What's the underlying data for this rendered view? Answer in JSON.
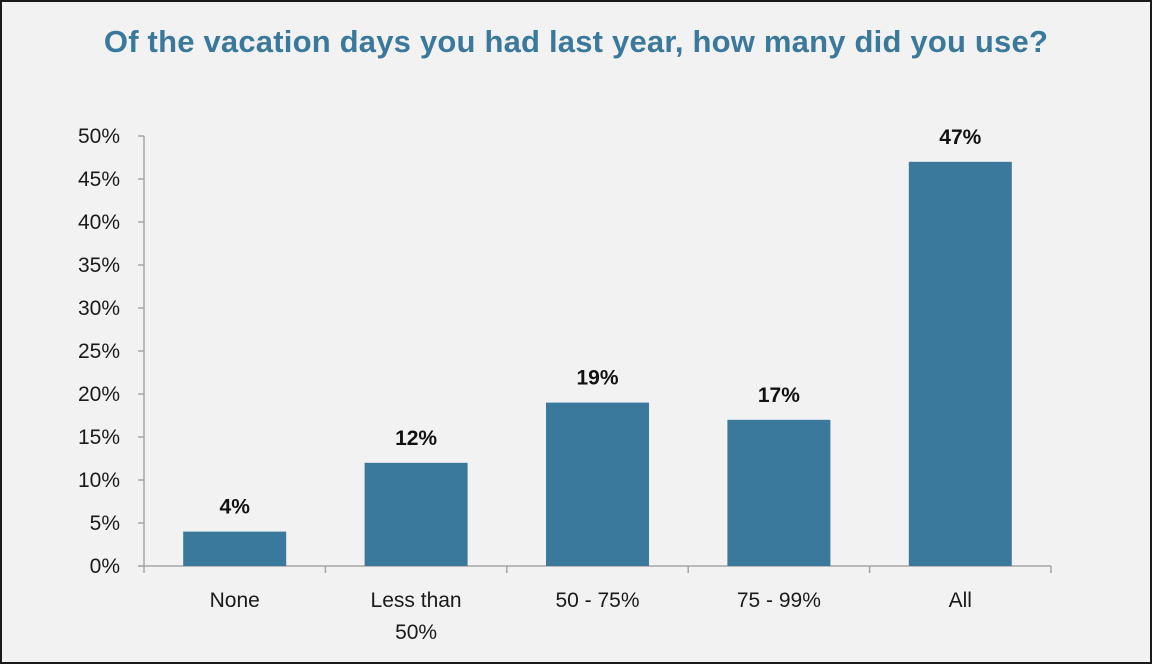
{
  "chart_data": {
    "type": "bar",
    "title": "Of the vacation days you had last year, how many did you use?",
    "categories": [
      "None",
      "Less than 50%",
      "50 - 75%",
      "75 - 99%",
      "All"
    ],
    "category_lines": [
      [
        "None"
      ],
      [
        "Less than",
        "50%"
      ],
      [
        "50 - 75%"
      ],
      [
        "75 - 99%"
      ],
      [
        "All"
      ]
    ],
    "values": [
      4,
      12,
      19,
      17,
      47
    ],
    "data_labels": [
      "4%",
      "12%",
      "19%",
      "17%",
      "47%"
    ],
    "value_suffix": "%",
    "ylim": [
      0,
      50
    ],
    "y_ticks": [
      0,
      5,
      10,
      15,
      20,
      25,
      30,
      35,
      40,
      45,
      50
    ],
    "y_tick_labels": [
      "0%",
      "5%",
      "10%",
      "15%",
      "20%",
      "25%",
      "30%",
      "35%",
      "40%",
      "45%",
      "50%"
    ],
    "xlabel": "",
    "ylabel": "",
    "grid": false,
    "legend": "none",
    "colors": {
      "bar": "#3a799b",
      "title": "#3a799b",
      "axis": "#a6a6a6",
      "background": "#f2f2f2"
    }
  }
}
